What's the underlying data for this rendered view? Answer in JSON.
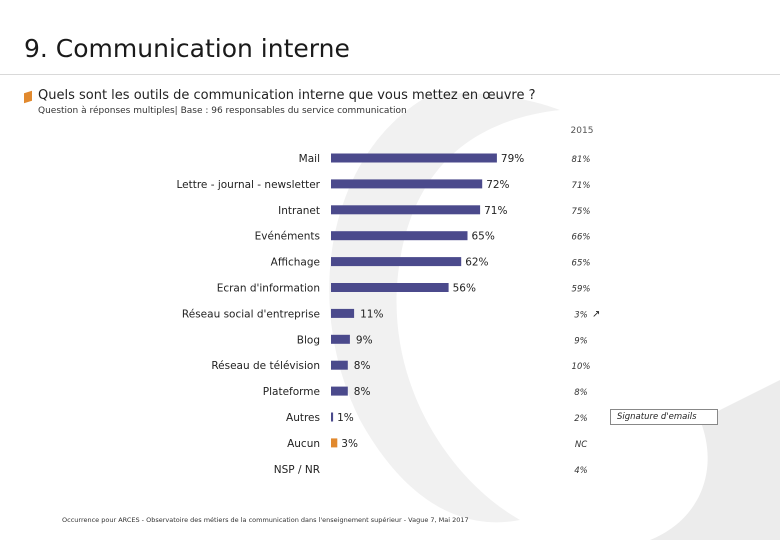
{
  "page": {
    "title": "9. Communication interne",
    "question": "Quels sont les outils de communication interne que vous mettez en œuvre ?",
    "subnote": "Question à réponses multiples| Base : 96 responsables du service communication",
    "comparison_header": "2015",
    "callout": "Signature d'emails",
    "footer": "Occurrence pour ARCES - Observatoire des métiers de la communication dans l'enseignement supérieur - Vague 7, Mai 2017",
    "colors": {
      "bar": "#4b4a8c",
      "highlight": "#e1892e"
    }
  },
  "chart_data": {
    "type": "bar",
    "orientation": "horizontal",
    "categories": [
      "Mail",
      "Lettre - journal - newsletter",
      "Intranet",
      "Evénéments",
      "Affichage",
      "Ecran d'information",
      "Réseau social d'entreprise",
      "Blog",
      "Réseau de télévision",
      "Plateforme",
      "Autres",
      "Aucun",
      "NSP / NR"
    ],
    "values": [
      79,
      72,
      71,
      65,
      62,
      56,
      11,
      9,
      8,
      8,
      1,
      3,
      null
    ],
    "value_labels": [
      "79%",
      "72%",
      "71%",
      "65%",
      "62%",
      "56%",
      "11%",
      "9%",
      "8%",
      "8%",
      "1%",
      "3%",
      ""
    ],
    "bar_colors": [
      "#4b4a8c",
      "#4b4a8c",
      "#4b4a8c",
      "#4b4a8c",
      "#4b4a8c",
      "#4b4a8c",
      "#4b4a8c",
      "#4b4a8c",
      "#4b4a8c",
      "#4b4a8c",
      "#4b4a8c",
      "#e1892e",
      "#4b4a8c"
    ],
    "comparison_2015": [
      "81%",
      "71%",
      "75%",
      "66%",
      "65%",
      "59%",
      "3%",
      "9%",
      "10%",
      "8%",
      "2%",
      "NC",
      "4%"
    ],
    "trend_markers": [
      "",
      "",
      "",
      "",
      "",
      "",
      "↗",
      "",
      "",
      "",
      "",
      "",
      ""
    ],
    "xlim": [
      0,
      100
    ],
    "xlabel": "",
    "ylabel": "",
    "grid": false,
    "legend": "none"
  }
}
